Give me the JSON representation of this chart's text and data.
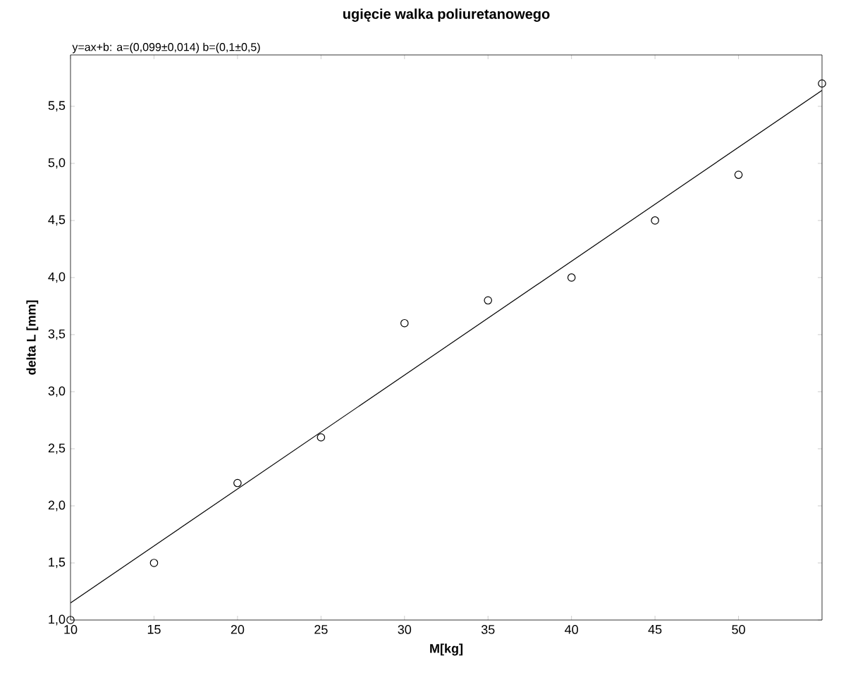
{
  "chart_data": {
    "type": "scatter",
    "title": "ugięcie walka poliuretanowego",
    "xlabel": "M[kg]",
    "ylabel": "delta L [mm]",
    "annotations": [
      "y=ax+b: a=(0,099±0,014)  b=(0,1±0,5)"
    ],
    "xlim": [
      10,
      55
    ],
    "xticks": [
      10,
      15,
      20,
      25,
      30,
      35,
      40,
      45,
      50
    ],
    "ylim": [
      1.0,
      5.95
    ],
    "yticks": [
      {
        "value": 1.0,
        "label": "1,0"
      },
      {
        "value": 1.5,
        "label": "1,5"
      },
      {
        "value": 2.0,
        "label": "2,0"
      },
      {
        "value": 2.5,
        "label": "2,5"
      },
      {
        "value": 3.0,
        "label": "3,0"
      },
      {
        "value": 3.5,
        "label": "3,5"
      },
      {
        "value": 4.0,
        "label": "4,0"
      },
      {
        "value": 4.5,
        "label": "4,5"
      },
      {
        "value": 5.0,
        "label": "5,0"
      },
      {
        "value": 5.5,
        "label": "5,5"
      }
    ],
    "series": [
      {
        "type": "scatter",
        "color": "#000000",
        "marker": "circle",
        "x": [
          10,
          15,
          20,
          25,
          30,
          35,
          40,
          45,
          50,
          55
        ],
        "values": [
          1.0,
          1.5,
          2.2,
          2.6,
          3.6,
          3.8,
          4.0,
          4.5,
          4.9,
          5.7
        ]
      },
      {
        "type": "line",
        "color": "#000000",
        "marker": "none",
        "line_style": "solid",
        "x": [
          10,
          55
        ],
        "values": [
          1.15,
          5.64
        ]
      }
    ]
  }
}
